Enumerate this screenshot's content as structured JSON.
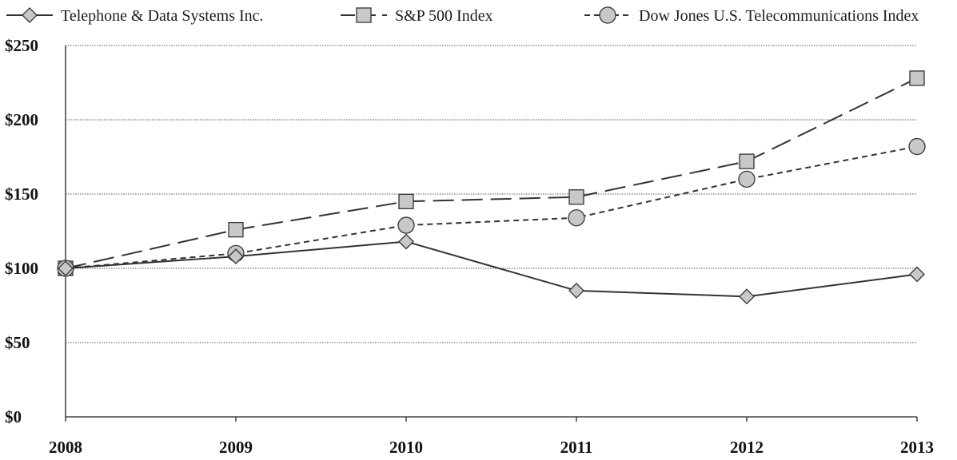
{
  "chart_data": {
    "type": "line",
    "title": "",
    "xlabel": "",
    "ylabel": "",
    "categories": [
      "2008",
      "2009",
      "2010",
      "2011",
      "2012",
      "2013"
    ],
    "ylim": [
      0,
      250
    ],
    "y_ticks": [
      0,
      50,
      100,
      150,
      200,
      250
    ],
    "y_tick_labels": [
      "$0",
      "$50",
      "$100",
      "$150",
      "$200",
      "$250"
    ],
    "grid": "horizontal dotted",
    "legend_position": "top",
    "series": [
      {
        "name": "Telephone & Data Systems Inc.",
        "values": [
          100,
          108,
          118,
          85,
          81,
          96
        ],
        "line_style": "solid",
        "marker": "diamond",
        "color": "#333333"
      },
      {
        "name": "S&P 500 Index",
        "values": [
          100,
          126,
          145,
          148,
          172,
          228
        ],
        "line_style": "long-dash",
        "marker": "square",
        "color": "#333333"
      },
      {
        "name": "Dow Jones U.S. Telecommunications Index",
        "values": [
          100,
          110,
          129,
          134,
          160,
          182
        ],
        "line_style": "short-dash",
        "marker": "circle",
        "color": "#333333"
      }
    ],
    "marker_fill": "#c8c8c8"
  }
}
